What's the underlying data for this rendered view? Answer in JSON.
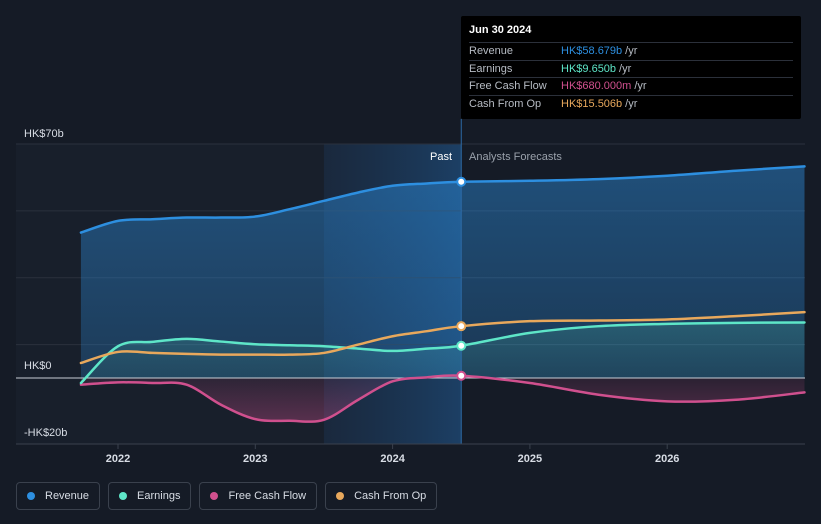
{
  "tooltip": {
    "date": "Jun 30 2024",
    "rows": [
      {
        "label": "Revenue",
        "value": "HK$58.679b",
        "unit": "/yr",
        "color": "#2d8fe0"
      },
      {
        "label": "Earnings",
        "value": "HK$9.650b",
        "unit": "/yr",
        "color": "#5ee6c8"
      },
      {
        "label": "Free Cash Flow",
        "value": "HK$680.000m",
        "unit": "/yr",
        "color": "#d0508e"
      },
      {
        "label": "Cash From Op",
        "value": "HK$15.506b",
        "unit": "/yr",
        "color": "#e8a85c"
      }
    ]
  },
  "sections": {
    "past": "Past",
    "forecast": "Analysts Forecasts"
  },
  "legend": [
    {
      "label": "Revenue",
      "color": "#2d8fe0"
    },
    {
      "label": "Earnings",
      "color": "#5ee6c8"
    },
    {
      "label": "Free Cash Flow",
      "color": "#d0508e"
    },
    {
      "label": "Cash From Op",
      "color": "#e8a85c"
    }
  ],
  "chart_data": {
    "type": "line",
    "title": "",
    "xlabel": "",
    "ylabel": "",
    "ylim": [
      -20,
      70
    ],
    "xlim": [
      2021.5,
      2027.0
    ],
    "y_tick_labels": [
      {
        "value": 70,
        "label": "HK$70b"
      },
      {
        "value": 0,
        "label": "HK$0"
      },
      {
        "value": -20,
        "label": "-HK$20b"
      }
    ],
    "x_tick_labels": [
      {
        "value": 2022,
        "label": "2022"
      },
      {
        "value": 2023,
        "label": "2023"
      },
      {
        "value": 2024,
        "label": "2024"
      },
      {
        "value": 2025,
        "label": "2025"
      },
      {
        "value": 2026,
        "label": "2026"
      }
    ],
    "past_end": 2024.5,
    "shaded_region_start": 2023.5,
    "highlight_x": 2024.5,
    "series": [
      {
        "name": "Revenue",
        "color": "#2d8fe0",
        "x": [
          2021.73,
          2022.0,
          2022.25,
          2022.5,
          2022.75,
          2023.0,
          2023.25,
          2023.5,
          2023.75,
          2024.0,
          2024.25,
          2024.5,
          2025.0,
          2025.5,
          2026.0,
          2026.5,
          2027.0
        ],
        "y": [
          43.5,
          47.0,
          47.5,
          48.0,
          48.0,
          48.3,
          50.5,
          53.0,
          55.5,
          57.5,
          58.2,
          58.7,
          59.0,
          59.5,
          60.5,
          62.0,
          63.3
        ]
      },
      {
        "name": "Earnings",
        "color": "#5ee6c8",
        "x": [
          2021.73,
          2022.0,
          2022.25,
          2022.5,
          2022.75,
          2023.0,
          2023.25,
          2023.5,
          2023.75,
          2024.0,
          2024.25,
          2024.5,
          2025.0,
          2025.5,
          2026.0,
          2026.5,
          2027.0
        ],
        "y": [
          -1.5,
          9.5,
          10.8,
          11.7,
          10.9,
          10.1,
          9.8,
          9.5,
          8.8,
          8.1,
          8.8,
          9.65,
          13.5,
          15.5,
          16.2,
          16.5,
          16.6
        ]
      },
      {
        "name": "Free Cash Flow",
        "color": "#d0508e",
        "x": [
          2021.73,
          2022.0,
          2022.25,
          2022.5,
          2022.75,
          2023.0,
          2023.25,
          2023.5,
          2023.75,
          2024.0,
          2024.25,
          2024.5,
          2025.0,
          2025.5,
          2026.0,
          2026.5,
          2027.0
        ],
        "y": [
          -2.0,
          -1.3,
          -1.5,
          -2.0,
          -8.0,
          -12.3,
          -12.8,
          -12.5,
          -6.5,
          -1.0,
          0.2,
          0.68,
          -1.5,
          -5.0,
          -7.0,
          -6.5,
          -4.3
        ]
      },
      {
        "name": "Cash From Op",
        "color": "#e8a85c",
        "x": [
          2021.73,
          2022.0,
          2022.25,
          2022.5,
          2022.75,
          2023.0,
          2023.25,
          2023.5,
          2023.75,
          2024.0,
          2024.25,
          2024.5,
          2025.0,
          2025.5,
          2026.0,
          2026.5,
          2027.0
        ],
        "y": [
          4.5,
          7.8,
          7.5,
          7.2,
          7.0,
          7.0,
          7.0,
          7.5,
          10.0,
          12.5,
          14.0,
          15.5,
          17.0,
          17.2,
          17.5,
          18.5,
          19.7
        ]
      }
    ]
  }
}
